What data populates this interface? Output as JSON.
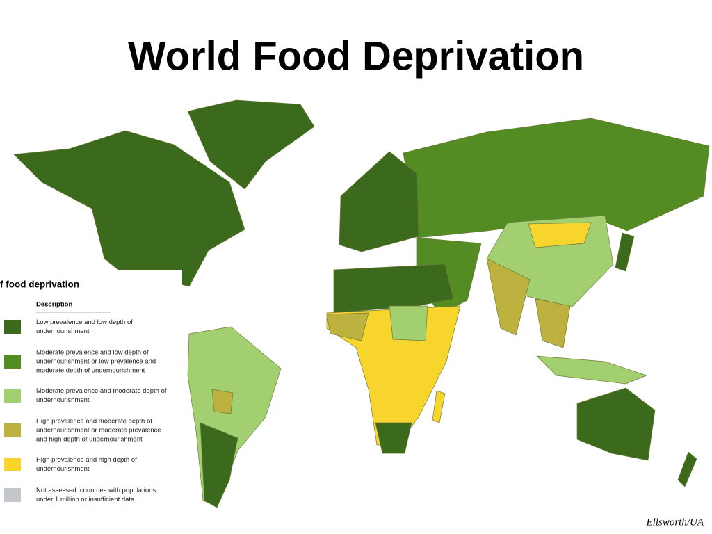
{
  "title": "World Food Deprivation",
  "legend": {
    "title": "f food deprivation",
    "header": "Description",
    "items": [
      {
        "color": "#3b6a1c",
        "lines": [
          "Low prevalence and low depth of",
          "undernourishment"
        ]
      },
      {
        "color": "#528c22",
        "lines": [
          "Moderate prevalence and low depth of",
          "undernourishment or low prevalence and",
          "moderate depth of undernourishment"
        ]
      },
      {
        "color": "#a2d070",
        "lines": [
          "Moderate prevalence and moderate depth of",
          "undernourishment"
        ]
      },
      {
        "color": "#bdb13f",
        "lines": [
          "High prevalence and moderate depth of",
          "undernourishment or moderate prevalence",
          "and high depth of undernourishment"
        ]
      },
      {
        "color": "#f8d52c",
        "lines": [
          "High prevalence and high depth of",
          "undernourishment"
        ]
      },
      {
        "color": "#c4c8cb",
        "lines": [
          "Not assessed: countries with populations",
          "under 1 million or insufficient data"
        ]
      }
    ]
  },
  "credit": "Ellsworth/UA"
}
